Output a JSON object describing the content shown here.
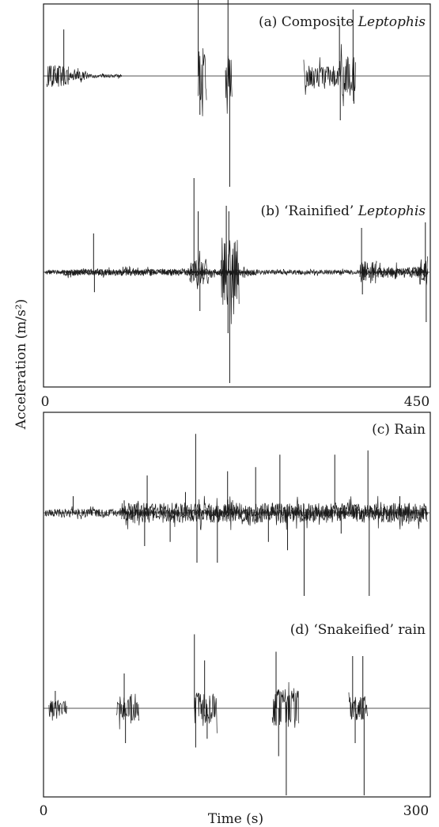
{
  "chart_data": [
    {
      "type": "line",
      "x_range": [
        0,
        450
      ],
      "x_tick_labels": [
        "0",
        "450"
      ],
      "ylabel": "Acceleration (m/s²)",
      "grid": false,
      "series": [
        {
          "name": "(a) Composite Leptophis",
          "label_plain": "(a) Composite ",
          "label_italic": "Leptophis",
          "bursts": [
            {
              "t_start": 2,
              "t_end": 28,
              "amplitude": 0.1
            },
            {
              "t_start": 28,
              "t_end": 50,
              "amplitude": 0.04
            },
            {
              "t_start": 50,
              "t_end": 90,
              "amplitude": 0.015
            },
            {
              "t_start": 180,
              "t_end": 190,
              "amplitude": 0.25
            },
            {
              "t_start": 212,
              "t_end": 220,
              "amplitude": 0.2
            },
            {
              "t_start": 304,
              "t_end": 345,
              "amplitude": 0.1
            },
            {
              "t_start": 345,
              "t_end": 365,
              "amplitude": 0.18
            }
          ],
          "spikes": [
            {
              "t": 22,
              "value": 0.42
            },
            {
              "t": 180,
              "value": 0.92
            },
            {
              "t": 182,
              "value": -0.35
            },
            {
              "t": 215,
              "value": 0.95
            },
            {
              "t": 217,
              "value": -1.0
            },
            {
              "t": 346,
              "value": 0.45
            },
            {
              "t": 347,
              "value": -0.4
            },
            {
              "t": 362,
              "value": 0.6
            },
            {
              "t": 363,
              "value": -0.25
            }
          ]
        },
        {
          "name": "(b) ‘Rainified’ Leptophis",
          "label_plain": "(b) ‘Rainified’ ",
          "label_italic": "Leptophis",
          "bursts": [
            {
              "t_start": 0,
              "t_end": 450,
              "amplitude": 0.02
            },
            {
              "t_start": 20,
              "t_end": 250,
              "amplitude": 0.03
            },
            {
              "t_start": 170,
              "t_end": 192,
              "amplitude": 0.12
            },
            {
              "t_start": 207,
              "t_end": 228,
              "amplitude": 0.3
            },
            {
              "t_start": 370,
              "t_end": 390,
              "amplitude": 0.1
            },
            {
              "t_start": 390,
              "t_end": 450,
              "amplitude": 0.05
            },
            {
              "t_start": 440,
              "t_end": 450,
              "amplitude": 0.12
            }
          ],
          "spikes": [
            {
              "t": 57,
              "value": 0.35
            },
            {
              "t": 58,
              "value": -0.18
            },
            {
              "t": 175,
              "value": 0.85
            },
            {
              "t": 180,
              "value": 0.55
            },
            {
              "t": 182,
              "value": -0.35
            },
            {
              "t": 213,
              "value": 0.6
            },
            {
              "t": 215,
              "value": -0.55
            },
            {
              "t": 216,
              "value": 0.55
            },
            {
              "t": 217,
              "value": -1.0
            },
            {
              "t": 372,
              "value": 0.4
            },
            {
              "t": 373,
              "value": -0.2
            },
            {
              "t": 447,
              "value": 0.45
            },
            {
              "t": 448,
              "value": -0.45
            }
          ]
        }
      ]
    },
    {
      "type": "line",
      "x_range": [
        0,
        300
      ],
      "x_tick_labels": [
        "0",
        "300"
      ],
      "xlabel": "Time (s)",
      "grid": false,
      "series": [
        {
          "name": "(c) Rain",
          "label_plain": "(c) Rain",
          "label_italic": "",
          "bursts": [
            {
              "t_start": 0,
              "t_end": 300,
              "amplitude": 0.045
            },
            {
              "t_start": 60,
              "t_end": 300,
              "amplitude": 0.12
            }
          ],
          "spikes": [
            {
              "t": 22,
              "value": 0.2
            },
            {
              "t": 62,
              "value": 0.15
            },
            {
              "t": 78,
              "value": -0.4
            },
            {
              "t": 80,
              "value": 0.45
            },
            {
              "t": 98,
              "value": -0.35
            },
            {
              "t": 110,
              "value": 0.25
            },
            {
              "t": 118,
              "value": 0.95
            },
            {
              "t": 119,
              "value": -0.6
            },
            {
              "t": 135,
              "value": -0.6
            },
            {
              "t": 143,
              "value": 0.5
            },
            {
              "t": 165,
              "value": 0.55
            },
            {
              "t": 175,
              "value": -0.35
            },
            {
              "t": 184,
              "value": 0.7
            },
            {
              "t": 190,
              "value": -0.45
            },
            {
              "t": 203,
              "value": -1.0
            },
            {
              "t": 227,
              "value": 0.7
            },
            {
              "t": 232,
              "value": -0.25
            },
            {
              "t": 253,
              "value": 0.75
            },
            {
              "t": 254,
              "value": -1.0
            },
            {
              "t": 278,
              "value": 0.2
            }
          ]
        },
        {
          "name": "(d) ‘Snakeified’ rain",
          "label_plain": "(d) ‘Snakeified’ rain",
          "label_italic": "",
          "bursts": [
            {
              "t_start": 3,
              "t_end": 17,
              "amplitude": 0.1
            },
            {
              "t_start": 56,
              "t_end": 74,
              "amplitude": 0.14
            },
            {
              "t_start": 117,
              "t_end": 135,
              "amplitude": 0.18
            },
            {
              "t_start": 178,
              "t_end": 199,
              "amplitude": 0.22
            },
            {
              "t_start": 238,
              "t_end": 253,
              "amplitude": 0.14
            }
          ],
          "spikes": [
            {
              "t": 8,
              "value": 0.2
            },
            {
              "t": 62,
              "value": 0.4
            },
            {
              "t": 63,
              "value": -0.4
            },
            {
              "t": 117,
              "value": 0.85
            },
            {
              "t": 118,
              "value": -0.45
            },
            {
              "t": 125,
              "value": 0.55
            },
            {
              "t": 127,
              "value": -0.35
            },
            {
              "t": 181,
              "value": 0.65
            },
            {
              "t": 183,
              "value": -0.55
            },
            {
              "t": 189,
              "value": -1.0
            },
            {
              "t": 241,
              "value": 0.6
            },
            {
              "t": 243,
              "value": -0.4
            },
            {
              "t": 249,
              "value": 0.6
            },
            {
              "t": 250,
              "value": -1.0
            }
          ]
        }
      ]
    }
  ]
}
